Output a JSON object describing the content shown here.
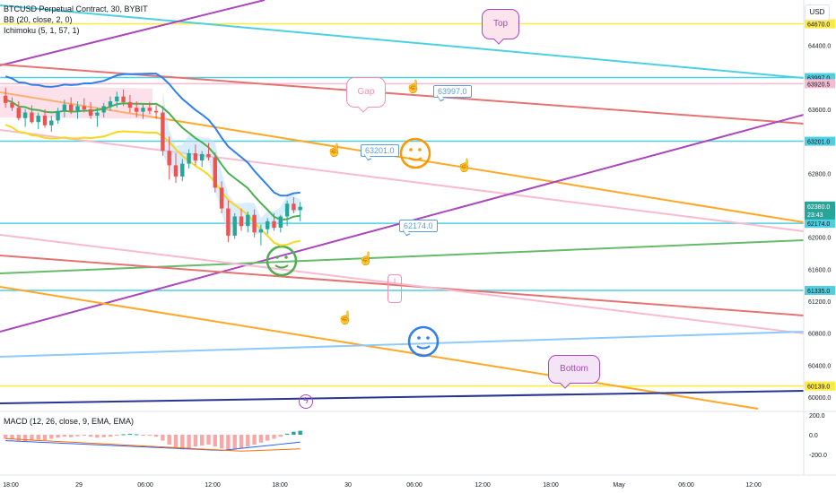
{
  "header": {
    "symbol_line": "BTCUSD Perpetual Contract, 30, BYBIT",
    "indicator_bb": "BB (20, close, 2, 0)",
    "indicator_ichimoku": "Ichimoku (5, 1, 57, 1)",
    "macd_label": "MACD (12, 26, close, 9, EMA, EMA)",
    "currency": "USD"
  },
  "annotations": {
    "top": "Top",
    "gap": "Gap",
    "bottom": "Bottom",
    "label_63997": "63997.0",
    "label_63201": "63201.0",
    "label_62174": "62174.0"
  },
  "colors": {
    "up": "#26a69a",
    "down": "#ef5350",
    "cyan": "#4dd0e1",
    "purple": "#ab47bc",
    "red": "#e57373",
    "orange": "#ffa726",
    "pink": "#f8bbd0",
    "green": "#66bb6a",
    "yellow": "#ffeb3b",
    "blue": "#90caf9",
    "navy": "#283593",
    "bb_line": "#4caf50",
    "kumo": "#bbdefb"
  },
  "chart_data": {
    "type": "candlestick",
    "symbol": "BTCUSD Perpetual Contract",
    "timeframe": "30",
    "exchange": "BYBIT",
    "x_labels": [
      "18:00",
      "29",
      "06:00",
      "12:00",
      "18:00",
      "30",
      "06:00",
      "12:00",
      "18:00",
      "May",
      "06:00",
      "12:00"
    ],
    "price_ticks": [
      64400,
      63600,
      62800,
      62000,
      61600,
      61200,
      60800,
      60400,
      60000
    ],
    "price_axis_labels": [
      64670,
      64400,
      63997,
      63920.5,
      63600,
      63201,
      62800,
      62380,
      62174,
      62000,
      61600,
      61335,
      61200,
      60800,
      60400,
      60139,
      60000
    ],
    "ylim": [
      59900,
      64900
    ],
    "last_price": {
      "value": "62380.0",
      "countdown": "23:43"
    },
    "horizontal_levels": [
      {
        "price": 64670,
        "label": "64670.0",
        "color": "yellow"
      },
      {
        "price": 63997,
        "label": "63997.0",
        "color": "cyan"
      },
      {
        "price": 63920.5,
        "label": "63920.5",
        "color": "pink"
      },
      {
        "price": 63201,
        "label": "63201.0",
        "color": "cyan"
      },
      {
        "price": 62174,
        "label": "62174.0",
        "color": "cyan"
      },
      {
        "price": 61335,
        "label": "61335.0",
        "color": "cyan"
      },
      {
        "price": 60139,
        "label": "60139.0",
        "color": "yellow"
      }
    ],
    "candles": [
      [
        63770,
        63870,
        63620,
        63680
      ],
      [
        63680,
        63750,
        63580,
        63620
      ],
      [
        63620,
        63700,
        63460,
        63490
      ],
      [
        63490,
        63600,
        63380,
        63560
      ],
      [
        63560,
        63650,
        63420,
        63440
      ],
      [
        63440,
        63560,
        63350,
        63520
      ],
      [
        63520,
        63600,
        63370,
        63400
      ],
      [
        63400,
        63520,
        63320,
        63460
      ],
      [
        63460,
        63620,
        63420,
        63580
      ],
      [
        63580,
        63720,
        63500,
        63660
      ],
      [
        63660,
        63750,
        63540,
        63580
      ],
      [
        63580,
        63700,
        63480,
        63640
      ],
      [
        63640,
        63740,
        63560,
        63600
      ],
      [
        63600,
        63690,
        63480,
        63520
      ],
      [
        63520,
        63620,
        63380,
        63560
      ],
      [
        63560,
        63680,
        63500,
        63640
      ],
      [
        63640,
        63760,
        63580,
        63700
      ],
      [
        63700,
        63820,
        63620,
        63760
      ],
      [
        63760,
        63850,
        63640,
        63690
      ],
      [
        63690,
        63780,
        63560,
        63620
      ],
      [
        63620,
        63700,
        63500,
        63570
      ],
      [
        63570,
        63660,
        63480,
        63620
      ],
      [
        63620,
        63690,
        63540,
        63580
      ],
      [
        63580,
        63650,
        63480,
        63560
      ],
      [
        63560,
        63640,
        63020,
        63080
      ],
      [
        63080,
        63260,
        62720,
        62900
      ],
      [
        62900,
        63050,
        62680,
        62760
      ],
      [
        62760,
        62980,
        62700,
        62920
      ],
      [
        62920,
        63100,
        62860,
        63050
      ],
      [
        63050,
        63160,
        62900,
        62960
      ],
      [
        62960,
        63080,
        62880,
        63040
      ],
      [
        63040,
        63180,
        62960,
        63000
      ],
      [
        63000,
        63060,
        62560,
        62620
      ],
      [
        62620,
        62700,
        62300,
        62360
      ],
      [
        62360,
        62460,
        61940,
        62020
      ],
      [
        62020,
        62300,
        61980,
        62260
      ],
      [
        62260,
        62360,
        62080,
        62140
      ],
      [
        62140,
        62320,
        62060,
        62280
      ],
      [
        62280,
        62350,
        62000,
        62060
      ],
      [
        62060,
        62160,
        61900,
        62100
      ],
      [
        62100,
        62240,
        62040,
        62200
      ],
      [
        62200,
        62300,
        62080,
        62120
      ],
      [
        62120,
        62280,
        62060,
        62260
      ],
      [
        62260,
        62460,
        62140,
        62420
      ],
      [
        62420,
        62500,
        62300,
        62340
      ],
      [
        62340,
        62440,
        62200,
        62380
      ]
    ],
    "macd": {
      "ticks": [
        200,
        0,
        -200
      ],
      "histogram": [
        -40,
        -50,
        -60,
        -70,
        -60,
        -50,
        -55,
        -40,
        -30,
        -20,
        -25,
        -15,
        -10,
        -20,
        -30,
        -25,
        -20,
        -10,
        5,
        10,
        5,
        -5,
        -10,
        -20,
        -60,
        -100,
        -130,
        -150,
        -140,
        -120,
        -110,
        -100,
        -120,
        -140,
        -160,
        -150,
        -140,
        -120,
        -100,
        -80,
        -60,
        -40,
        -20,
        10,
        30,
        40
      ]
    }
  }
}
